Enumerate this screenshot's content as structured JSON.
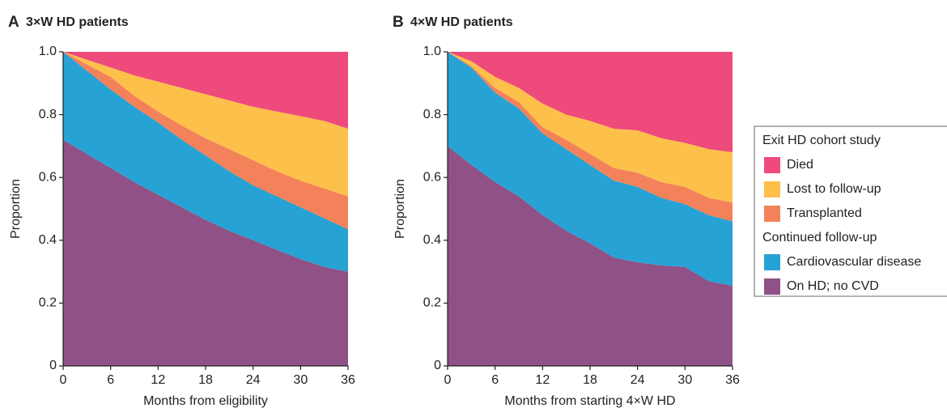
{
  "chart_data": [
    {
      "type": "stacked_area",
      "panel": "A",
      "title": "3×W HD patients",
      "x_label": "Months from eligibility",
      "y_label": "Proportion",
      "x": [
        0,
        3,
        6,
        9,
        12,
        15,
        18,
        21,
        24,
        27,
        30,
        33,
        36
      ],
      "series": [
        {
          "name": "On HD; no CVD",
          "color": "#8f5186",
          "values": [
            0.72,
            0.675,
            0.63,
            0.585,
            0.545,
            0.505,
            0.465,
            0.43,
            0.4,
            0.37,
            0.34,
            0.315,
            0.3
          ]
        },
        {
          "name": "Cardiovascular disease",
          "color": "#27a2d4",
          "values": [
            0.28,
            0.265,
            0.25,
            0.24,
            0.23,
            0.215,
            0.205,
            0.19,
            0.175,
            0.17,
            0.165,
            0.155,
            0.135
          ]
        },
        {
          "name": "Transplanted",
          "color": "#f3825a",
          "values": [
            0,
            0.02,
            0.04,
            0.035,
            0.035,
            0.045,
            0.055,
            0.07,
            0.08,
            0.08,
            0.085,
            0.095,
            0.105
          ]
        },
        {
          "name": "Lost to follow-up",
          "color": "#fdc04a",
          "values": [
            0,
            0.015,
            0.03,
            0.065,
            0.095,
            0.12,
            0.14,
            0.155,
            0.17,
            0.19,
            0.205,
            0.215,
            0.215
          ]
        },
        {
          "name": "Died",
          "color": "#ee4a7c",
          "values": [
            0,
            0.025,
            0.05,
            0.075,
            0.095,
            0.115,
            0.135,
            0.155,
            0.175,
            0.19,
            0.205,
            0.22,
            0.245
          ]
        }
      ],
      "xlim": [
        0,
        36
      ],
      "xticks": [
        0,
        6,
        12,
        18,
        24,
        30,
        36
      ],
      "ylim": [
        0,
        1
      ],
      "yticks": [
        0,
        0.2,
        0.4,
        0.6,
        0.8,
        {
          "value": 1,
          "label": "1.0"
        }
      ]
    },
    {
      "type": "stacked_area",
      "panel": "B",
      "title": "4×W HD patients",
      "x_label": "Months from starting 4×W HD",
      "y_label": "Proportion",
      "x": [
        0,
        3,
        6,
        9,
        12,
        15,
        18,
        21,
        24,
        27,
        30,
        33,
        36
      ],
      "series": [
        {
          "name": "On HD; no CVD",
          "color": "#8f5186",
          "values": [
            0.7,
            0.64,
            0.585,
            0.54,
            0.48,
            0.43,
            0.39,
            0.345,
            0.33,
            0.32,
            0.315,
            0.27,
            0.255
          ]
        },
        {
          "name": "Cardiovascular disease",
          "color": "#27a2d4",
          "values": [
            0.3,
            0.31,
            0.285,
            0.28,
            0.26,
            0.26,
            0.25,
            0.245,
            0.24,
            0.215,
            0.2,
            0.21,
            0.205
          ]
        },
        {
          "name": "Transplanted",
          "color": "#f3825a",
          "values": [
            0,
            0.005,
            0.015,
            0.02,
            0.02,
            0.03,
            0.035,
            0.04,
            0.045,
            0.05,
            0.055,
            0.055,
            0.06
          ]
        },
        {
          "name": "Lost to follow-up",
          "color": "#fdc04a",
          "values": [
            0,
            0.015,
            0.035,
            0.045,
            0.075,
            0.08,
            0.105,
            0.125,
            0.135,
            0.14,
            0.14,
            0.155,
            0.16
          ]
        },
        {
          "name": "Died",
          "color": "#ee4a7c",
          "values": [
            0,
            0.03,
            0.08,
            0.115,
            0.165,
            0.2,
            0.22,
            0.245,
            0.25,
            0.275,
            0.29,
            0.31,
            0.32
          ]
        }
      ],
      "xlim": [
        0,
        36
      ],
      "xticks": [
        0,
        6,
        12,
        18,
        24,
        30,
        36
      ],
      "ylim": [
        0,
        1
      ],
      "yticks": [
        0,
        0.2,
        0.4,
        0.6,
        0.8,
        {
          "value": 1,
          "label": "1.0"
        }
      ],
      "legend_titles": [
        "Exit HD cohort study",
        "Continued follow-up"
      ]
    }
  ]
}
